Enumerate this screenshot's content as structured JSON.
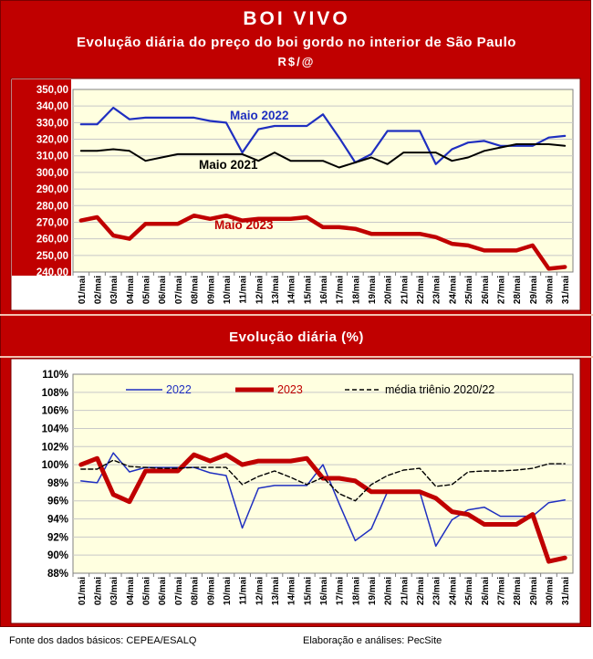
{
  "header": {
    "title": "BOI VIVO",
    "subtitle": "Evolução diária do preço do boi gordo no interior de São Paulo",
    "unit": "R$/@",
    "section2_title": "Evolução diária (%)"
  },
  "footer": {
    "source": "Fonte dos dados básicos: CEPEA/ESALQ",
    "credit": "Elaboração e análises: PecSite"
  },
  "colors": {
    "s2022": "#1f2fc0",
    "s2021": "#000000",
    "s2023": "#c00000",
    "frame": "#c00000",
    "plot": "#ffffe0"
  },
  "chart_data": [
    {
      "type": "line",
      "categories": [
        "01/mai",
        "02/mai",
        "03/mai",
        "04/mai",
        "05/mai",
        "06/mai",
        "07/mai",
        "08/mai",
        "09/mai",
        "10/mai",
        "11/mai",
        "12/mai",
        "13/mai",
        "14/mai",
        "15/mai",
        "16/mai",
        "17/mai",
        "18/mai",
        "19/mai",
        "20/mai",
        "21/mai",
        "22/mai",
        "23/mai",
        "24/mai",
        "25/mai",
        "26/mai",
        "27/mai",
        "28/mai",
        "29/mai",
        "30/mai",
        "31/mai"
      ],
      "ylim": [
        240,
        350
      ],
      "yticks": [
        "240,00",
        "250,00",
        "260,00",
        "270,00",
        "280,00",
        "290,00",
        "300,00",
        "310,00",
        "320,00",
        "330,00",
        "340,00",
        "350,00"
      ],
      "grid": true,
      "series": [
        {
          "name": "Maio 2022",
          "values": [
            329,
            329,
            339,
            332,
            333,
            333,
            333,
            333,
            331,
            330,
            312,
            326,
            328,
            328,
            328,
            335,
            321,
            306,
            311,
            325,
            325,
            325,
            305,
            314,
            318,
            319,
            316,
            316,
            316,
            321,
            322
          ]
        },
        {
          "name": "Maio 2021",
          "values": [
            313,
            313,
            314,
            313,
            307,
            309,
            311,
            311,
            311,
            311,
            311,
            307,
            312,
            307,
            307,
            307,
            303,
            306,
            309,
            305,
            312,
            312,
            312,
            307,
            309,
            313,
            315,
            317,
            317,
            317,
            316
          ]
        },
        {
          "name": "Maio 2023",
          "values": [
            271,
            273,
            262,
            260,
            269,
            269,
            269,
            274,
            272,
            274,
            271,
            272,
            272,
            272,
            273,
            267,
            267,
            266,
            263,
            263,
            263,
            263,
            261,
            257,
            256,
            253,
            253,
            253,
            256,
            242,
            243
          ]
        }
      ]
    },
    {
      "type": "line",
      "categories": [
        "01/mai",
        "02/mai",
        "03/mai",
        "04/mai",
        "05/mai",
        "06/mai",
        "07/mai",
        "08/mai",
        "09/mai",
        "10/mai",
        "11/mai",
        "12/mai",
        "13/mai",
        "14/mai",
        "15/mai",
        "16/mai",
        "17/mai",
        "18/mai",
        "19/mai",
        "20/mai",
        "21/mai",
        "22/mai",
        "23/mai",
        "24/mai",
        "25/mai",
        "26/mai",
        "27/mai",
        "28/mai",
        "29/mai",
        "30/mai",
        "31/mai"
      ],
      "ylim": [
        88,
        110
      ],
      "yticks": [
        "88%",
        "90%",
        "92%",
        "94%",
        "96%",
        "98%",
        "100%",
        "102%",
        "104%",
        "106%",
        "108%",
        "110%"
      ],
      "grid": true,
      "legend_position": "top",
      "series": [
        {
          "name": "2022",
          "values": [
            98.2,
            98.0,
            101.3,
            99.2,
            99.7,
            99.7,
            99.7,
            99.7,
            99.1,
            98.8,
            93.0,
            97.4,
            97.7,
            97.7,
            97.7,
            100.0,
            95.7,
            91.6,
            92.9,
            97.0,
            97.0,
            97.0,
            91.0,
            93.9,
            95.0,
            95.3,
            94.3,
            94.3,
            94.3,
            95.8,
            96.1
          ]
        },
        {
          "name": "2023",
          "values": [
            100.0,
            100.7,
            96.7,
            95.9,
            99.3,
            99.3,
            99.3,
            101.1,
            100.4,
            101.1,
            100.0,
            100.4,
            100.4,
            100.4,
            100.7,
            98.5,
            98.5,
            98.2,
            97.0,
            97.0,
            97.0,
            97.0,
            96.3,
            94.8,
            94.5,
            93.4,
            93.4,
            93.4,
            94.5,
            89.3,
            89.7
          ]
        },
        {
          "name": "média triênio 2020/22",
          "values": [
            99.5,
            99.5,
            100.5,
            99.8,
            99.7,
            99.6,
            99.6,
            99.7,
            99.7,
            99.7,
            97.8,
            98.7,
            99.3,
            98.6,
            97.8,
            98.6,
            96.8,
            96.0,
            97.8,
            98.8,
            99.4,
            99.6,
            97.6,
            97.8,
            99.2,
            99.3,
            99.3,
            99.4,
            99.6,
            100.1,
            100.1
          ]
        }
      ]
    }
  ]
}
